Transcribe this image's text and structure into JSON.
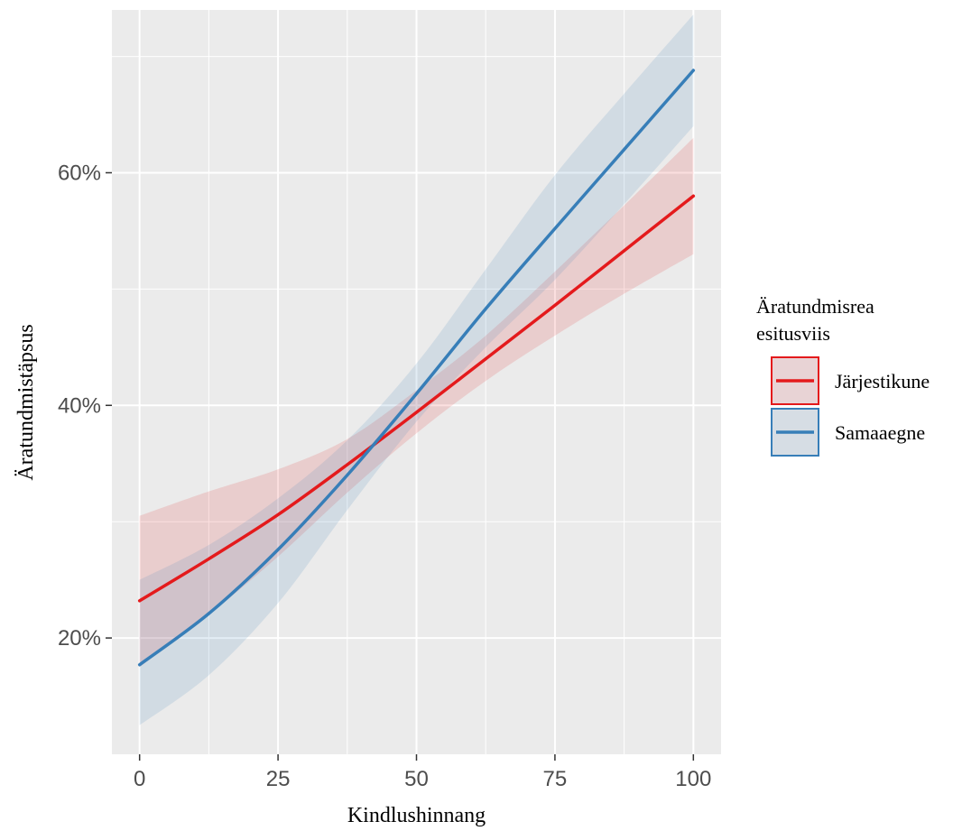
{
  "chart_data": {
    "type": "line",
    "title": "",
    "xlabel": "Kindlushinnang",
    "ylabel": "Äratundmistäpsus",
    "xlim": [
      -5,
      105
    ],
    "ylim": [
      10,
      74
    ],
    "x_ticks": [
      0,
      25,
      50,
      75,
      100
    ],
    "x_tick_labels": [
      "0",
      "25",
      "50",
      "75",
      "100"
    ],
    "y_ticks": [
      20,
      40,
      60
    ],
    "y_tick_labels": [
      "20%",
      "40%",
      "60%"
    ],
    "grid": true,
    "legend": {
      "title": [
        "Äratundmisrea",
        "esitusviis"
      ],
      "placement": "right"
    },
    "series": [
      {
        "name": "Järjestikune",
        "color": "#e41a1c",
        "x": [
          0,
          12.5,
          25,
          37.5,
          50,
          62.5,
          75,
          87.5,
          100
        ],
        "y": [
          23.2,
          26.8,
          30.6,
          34.9,
          39.4,
          44.0,
          48.6,
          53.3,
          58.0
        ],
        "lower": [
          17.5,
          22.0,
          27.0,
          32.5,
          37.6,
          42.1,
          46.0,
          49.6,
          53.0
        ],
        "upper": [
          30.5,
          32.6,
          34.5,
          37.1,
          41.3,
          46.0,
          51.5,
          57.2,
          63.0
        ]
      },
      {
        "name": "Samaaegne",
        "color": "#377eb8",
        "x": [
          0,
          12.5,
          25,
          37.5,
          50,
          62.5,
          75,
          87.5,
          100
        ],
        "y": [
          17.7,
          22.1,
          27.6,
          34.0,
          41.0,
          48.3,
          55.2,
          62.0,
          68.8
        ],
        "lower": [
          12.5,
          16.8,
          23.0,
          31.0,
          38.6,
          45.0,
          50.8,
          57.3,
          64.0
        ],
        "upper": [
          25.0,
          28.0,
          32.0,
          37.0,
          43.6,
          51.7,
          59.8,
          66.8,
          73.6
        ]
      }
    ]
  }
}
